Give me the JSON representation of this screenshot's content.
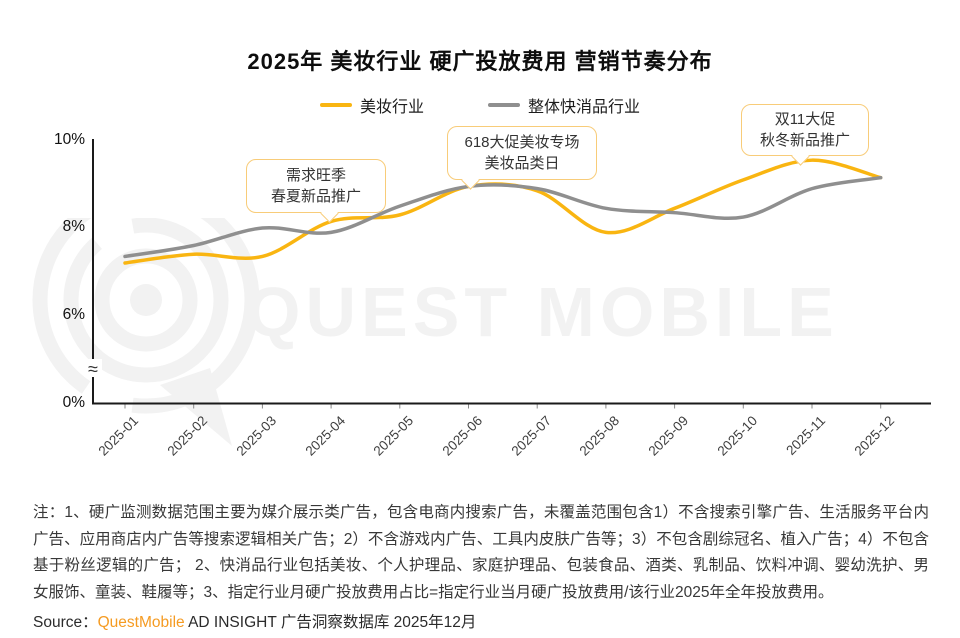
{
  "title": "2025年 美妆行业 硬广投放费用  营销节奏分布",
  "chart_data": {
    "type": "line",
    "x": [
      "2025-01",
      "2025-02",
      "2025-03",
      "2025-04",
      "2025-05",
      "2025-06",
      "2025-07",
      "2025-08",
      "2025-09",
      "2025-10",
      "2025-11",
      "2025-12"
    ],
    "unit": "%",
    "series": [
      {
        "name": "美妆行业",
        "color": "#F9B511",
        "values": [
          7.2,
          7.4,
          7.35,
          8.15,
          8.3,
          8.95,
          8.85,
          7.9,
          8.45,
          9.1,
          9.55,
          9.15
        ]
      },
      {
        "name": "整体快消品行业",
        "color": "#8F8F8F",
        "values": [
          7.35,
          7.6,
          8.0,
          7.9,
          8.5,
          8.95,
          8.9,
          8.45,
          8.35,
          8.25,
          8.9,
          9.15
        ]
      }
    ],
    "y_ticks": [
      {
        "label": "10%",
        "value": 10
      },
      {
        "label": "8%",
        "value": 8
      },
      {
        "label": "6%",
        "value": 6
      },
      {
        "label": "0%",
        "value": 0
      }
    ],
    "y_axis_break": true,
    "grid": false,
    "legend_position": "top",
    "x_label_rotation": -45,
    "annotations": [
      {
        "line1": "需求旺季",
        "line2": "春夏新品推广",
        "target_month": "2025-04"
      },
      {
        "line1": "618大促美妆专场",
        "line2": "美妆品类日",
        "target_month": "2025-06"
      },
      {
        "line1": "双11大促",
        "line2": "秋冬新品推广",
        "target_month": "2025-11"
      }
    ]
  },
  "watermark": {
    "text": "QUEST MOBILE"
  },
  "notes": "注：1、硬广监测数据范围主要为媒介展示类广告，包含电商内搜索广告，未覆盖范围包含1）不含搜索引擎广告、生活服务平台内广告、应用商店内广告等搜索逻辑相关广告；2）不含游戏内广告、工具内皮肤广告等；3）不包含剧综冠名、植入广告；4）不包含基于粉丝逻辑的广告； 2、快消品行业包括美妆、个人护理品、家庭护理品、包装食品、酒类、乳制品、饮料冲调、婴幼洗护、男女服饰、童装、鞋履等；3、指定行业月硬广投放费用占比=指定行业当月硬广投放费用/该行业2025年全年投放费用。",
  "source": {
    "prefix": "Source：",
    "brand": "QuestMobile",
    "rest": " AD INSIGHT 广告洞察数据库 2025年12月"
  }
}
